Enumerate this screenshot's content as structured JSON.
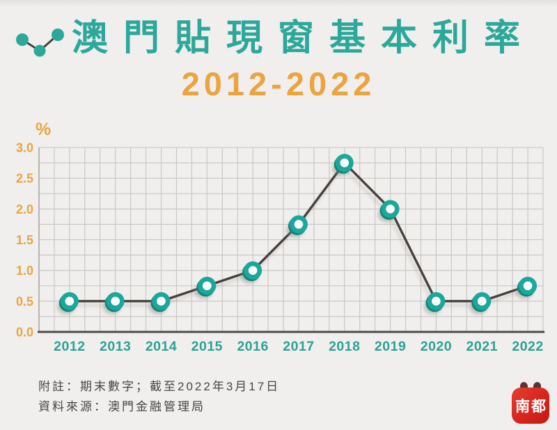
{
  "header": {
    "title": "澳門貼現窗基本利率",
    "subtitle": "2012-2022",
    "icon": "line-chart-dots-icon"
  },
  "chart_data": {
    "type": "line",
    "title": "澳門貼現窗基本利率 2012-2022",
    "categories": [
      "2012",
      "2013",
      "2014",
      "2015",
      "2016",
      "2017",
      "2018",
      "2019",
      "2020",
      "2021",
      "2022"
    ],
    "values": [
      0.5,
      0.5,
      0.5,
      0.75,
      1.0,
      1.75,
      2.75,
      2.0,
      0.5,
      0.5,
      0.75
    ],
    "unit_label": "%",
    "ylabel": "%",
    "xlabel": "",
    "ylim": [
      0,
      3.0
    ],
    "ytick_labels": [
      "3.0",
      "2.5",
      "2.0",
      "1.5",
      "1.0",
      "0.5",
      "0.0"
    ],
    "ytick_values": [
      3.0,
      2.5,
      2.0,
      1.5,
      1.0,
      0.5,
      0.0
    ],
    "minor_grid_step": 0.25,
    "grid": "on",
    "legend": "none"
  },
  "footnotes": {
    "note": "附註：期末數字；截至2022年3月17日",
    "source": "資料來源：澳門金融管理局"
  },
  "logo": {
    "text": "南都"
  },
  "colors": {
    "background": "#f0efed",
    "title_teal": "#2ca89a",
    "accent_orange": "#eda43e",
    "ytick_orange": "#eca43f",
    "xtick_teal": "#2aa294",
    "grid": "#c7c4c1",
    "axis_dark": "#4e4a47",
    "left_axis": "#a9a6a3",
    "line": "#46413e",
    "marker_teal": "#1ba89a",
    "marker_teal_dark": "#0f8678",
    "marker_center": "#ffffff",
    "shadow": "#8a857f",
    "footnote": "#474543",
    "logo_red": "#d8251d"
  }
}
